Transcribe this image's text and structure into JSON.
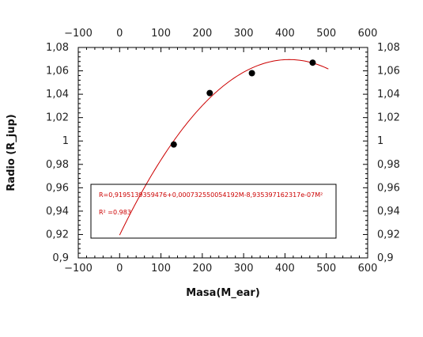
{
  "chart_data": {
    "type": "scatter",
    "xlabel": "Masa(M_ear)",
    "ylabel": "Radio (R_jup)",
    "xlim": [
      -100,
      600
    ],
    "ylim": [
      0.9,
      1.08
    ],
    "x_ticks": [
      -100,
      0,
      100,
      200,
      300,
      400,
      500,
      600
    ],
    "x_tick_labels": [
      "−100",
      "0",
      "100",
      "200",
      "300",
      "400",
      "500",
      "600"
    ],
    "y_ticks": [
      0.9,
      0.92,
      0.94,
      0.96,
      0.98,
      1.0,
      1.02,
      1.04,
      1.06,
      1.08
    ],
    "y_tick_labels": [
      "0,9",
      "0,92",
      "0,94",
      "0,96",
      "0,98",
      "1",
      "1,02",
      "1,04",
      "1,06",
      "1,08"
    ],
    "grid": false,
    "points": [
      {
        "x": 131,
        "y": 0.997
      },
      {
        "x": 218,
        "y": 1.041
      },
      {
        "x": 320,
        "y": 1.058
      },
      {
        "x": 467,
        "y": 1.067
      }
    ],
    "fit": {
      "a": 0.9195139359476,
      "b": 0.00073255005419,
      "c": -8.935397162317e-07,
      "x_range": [
        0,
        505
      ],
      "color": "#cc0000"
    },
    "point_color": "#000000",
    "annotations": {
      "equation": "R=0,9195139359476+0,000732550054192M-8,935397162317e-07M²",
      "r2": "R² =0.983"
    }
  }
}
